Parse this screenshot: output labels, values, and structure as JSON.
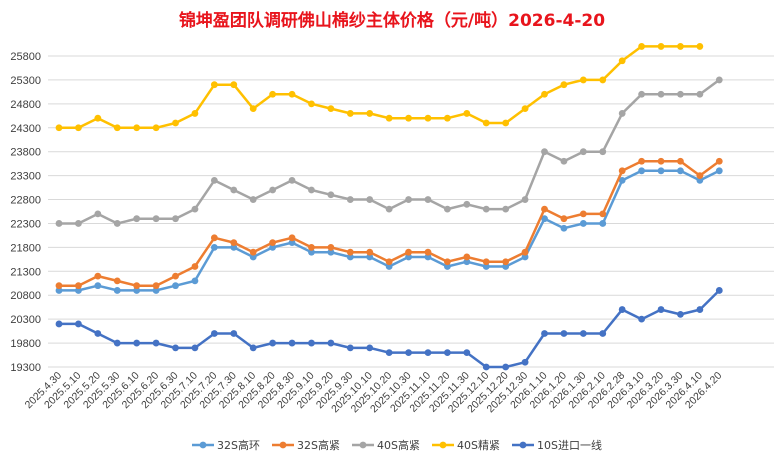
{
  "chart_data": {
    "type": "line",
    "title": "锦坤盈团队调研佛山棉纱主体价格（元/吨）2026-4-20",
    "xlabel": "",
    "ylabel": "",
    "ylim": [
      19300,
      25800
    ],
    "yticks": [
      19300,
      19800,
      20300,
      20800,
      21300,
      21800,
      22300,
      22800,
      23300,
      23800,
      24300,
      24800,
      25300,
      25800
    ],
    "grid": true,
    "legend_position": "bottom",
    "categories": [
      "2025.4.30",
      "2025.5.10",
      "2025.5.20",
      "2025.5.30",
      "2025.6.10",
      "2025.6.20",
      "2025.6.30",
      "2025.7.10",
      "2025.7.20",
      "2025.7.30",
      "2025.8.10",
      "2025.8.20",
      "2025.8.30",
      "2025.9.10",
      "2025.9.20",
      "2025.9.30",
      "2025.10.10",
      "2025.10.20",
      "2025.10.30",
      "2025.11.10",
      "2025.11.20",
      "2025.11.30",
      "2025.12.10",
      "2025.12.20",
      "2025.12.30",
      "2026.1.10",
      "2026.1.20",
      "2026.1.30",
      "2026.2.10",
      "2026.2.28",
      "2026.3.10",
      "2026.3.20",
      "2026.3.30",
      "2026.4.10",
      "2026.4.20"
    ],
    "series": [
      {
        "name": "32S高环",
        "color": "#5b9bd5",
        "values": [
          20900,
          20900,
          21000,
          20900,
          20900,
          20900,
          21000,
          21100,
          21800,
          21800,
          21600,
          21800,
          21900,
          21700,
          21700,
          21600,
          21600,
          21400,
          21600,
          21600,
          21400,
          21500,
          21400,
          21400,
          21600,
          22400,
          22200,
          22300,
          22300,
          23200,
          23400,
          23400,
          23400,
          23200,
          23400
        ]
      },
      {
        "name": "32S高紧",
        "color": "#ed7d31",
        "values": [
          21000,
          21000,
          21200,
          21100,
          21000,
          21000,
          21200,
          21400,
          22000,
          21900,
          21700,
          21900,
          22000,
          21800,
          21800,
          21700,
          21700,
          21500,
          21700,
          21700,
          21500,
          21600,
          21500,
          21500,
          21700,
          22600,
          22400,
          22500,
          22500,
          23400,
          23600,
          23600,
          23600,
          23300,
          23600
        ]
      },
      {
        "name": "40S高紧",
        "color": "#a5a5a5",
        "values": [
          22300,
          22300,
          22500,
          22300,
          22400,
          22400,
          22400,
          22600,
          23200,
          23000,
          22800,
          23000,
          23200,
          23000,
          22900,
          22800,
          22800,
          22600,
          22800,
          22800,
          22600,
          22700,
          22600,
          22600,
          22800,
          23800,
          23600,
          23800,
          23800,
          24600,
          25000,
          25000,
          25000,
          25000,
          25300
        ]
      },
      {
        "name": "40S精紧",
        "color": "#ffc000",
        "values": [
          24300,
          24300,
          24500,
          24300,
          24300,
          24300,
          24400,
          24600,
          25200,
          25200,
          24700,
          25000,
          25000,
          24800,
          24700,
          24600,
          24600,
          24500,
          24500,
          24500,
          24500,
          24600,
          24400,
          24400,
          24700,
          25000,
          25200,
          25300,
          25300,
          25700,
          26000,
          26000,
          26000,
          26000,
          null
        ]
      },
      {
        "name": "10S进口一线",
        "color": "#4472c4",
        "values": [
          20200,
          20200,
          20000,
          19800,
          19800,
          19800,
          19700,
          19700,
          20000,
          20000,
          19700,
          19800,
          19800,
          19800,
          19800,
          19700,
          19700,
          19600,
          19600,
          19600,
          19600,
          19600,
          19300,
          19300,
          19400,
          20000,
          20000,
          20000,
          20000,
          20500,
          20300,
          20500,
          20400,
          20500,
          20900
        ]
      }
    ]
  }
}
